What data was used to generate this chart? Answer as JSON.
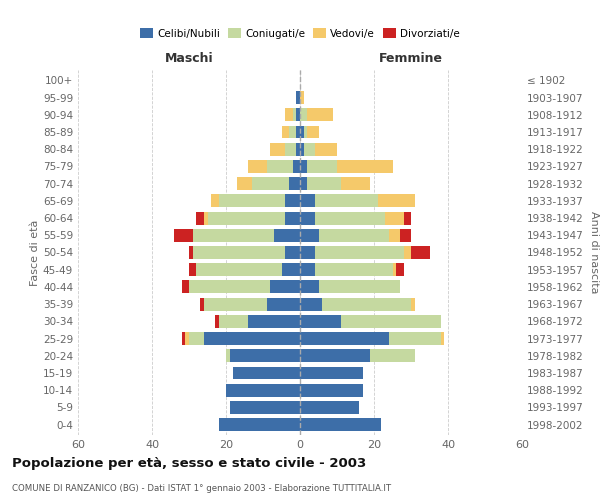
{
  "age_groups": [
    "100+",
    "95-99",
    "90-94",
    "85-89",
    "80-84",
    "75-79",
    "70-74",
    "65-69",
    "60-64",
    "55-59",
    "50-54",
    "45-49",
    "40-44",
    "35-39",
    "30-34",
    "25-29",
    "20-24",
    "15-19",
    "10-14",
    "5-9",
    "0-4"
  ],
  "birth_years": [
    "≤ 1902",
    "1903-1907",
    "1908-1912",
    "1913-1917",
    "1918-1922",
    "1923-1927",
    "1928-1932",
    "1933-1937",
    "1938-1942",
    "1943-1947",
    "1948-1952",
    "1953-1957",
    "1958-1962",
    "1963-1967",
    "1968-1972",
    "1973-1977",
    "1978-1982",
    "1983-1987",
    "1988-1992",
    "1993-1997",
    "1998-2002"
  ],
  "maschi": {
    "celibi": [
      0,
      1,
      1,
      1,
      1,
      2,
      3,
      4,
      4,
      7,
      4,
      5,
      8,
      9,
      14,
      26,
      19,
      18,
      20,
      19,
      22
    ],
    "coniugati": [
      0,
      0,
      1,
      2,
      3,
      7,
      10,
      18,
      21,
      22,
      25,
      23,
      22,
      17,
      8,
      4,
      1,
      0,
      0,
      0,
      0
    ],
    "vedovi": [
      0,
      0,
      2,
      2,
      4,
      5,
      4,
      2,
      1,
      0,
      0,
      0,
      0,
      0,
      0,
      1,
      0,
      0,
      0,
      0,
      0
    ],
    "divorziati": [
      0,
      0,
      0,
      0,
      0,
      0,
      0,
      0,
      2,
      5,
      1,
      2,
      2,
      1,
      1,
      1,
      0,
      0,
      0,
      0,
      0
    ]
  },
  "femmine": {
    "nubili": [
      0,
      0,
      0,
      1,
      1,
      2,
      2,
      4,
      4,
      5,
      4,
      4,
      5,
      6,
      11,
      24,
      19,
      17,
      17,
      16,
      22
    ],
    "coniugate": [
      0,
      0,
      2,
      1,
      3,
      8,
      9,
      17,
      19,
      19,
      24,
      21,
      22,
      24,
      27,
      14,
      12,
      0,
      0,
      0,
      0
    ],
    "vedove": [
      0,
      1,
      7,
      3,
      6,
      15,
      8,
      10,
      5,
      3,
      2,
      1,
      0,
      1,
      0,
      1,
      0,
      0,
      0,
      0,
      0
    ],
    "divorziate": [
      0,
      0,
      0,
      0,
      0,
      0,
      0,
      0,
      2,
      3,
      5,
      2,
      0,
      0,
      0,
      0,
      0,
      0,
      0,
      0,
      0
    ]
  },
  "colors": {
    "celibi_nubili": "#3d6ea8",
    "coniugati": "#c5d9a0",
    "vedovi": "#f5c96a",
    "divorziati": "#cc2222"
  },
  "title": "Popolazione per età, sesso e stato civile - 2003",
  "subtitle": "COMUNE DI RANZANICO (BG) - Dati ISTAT 1° gennaio 2003 - Elaborazione TUTTITALIA.IT",
  "xlabel_left": "Maschi",
  "xlabel_right": "Femmine",
  "ylabel_left": "Fasce di età",
  "ylabel_right": "Anni di nascita",
  "xlim": 60,
  "legend_labels": [
    "Celibi/Nubili",
    "Coniugati/e",
    "Vedovi/e",
    "Divorziati/e"
  ],
  "background_color": "#ffffff",
  "header_color": "#333333",
  "label_color": "#666666"
}
